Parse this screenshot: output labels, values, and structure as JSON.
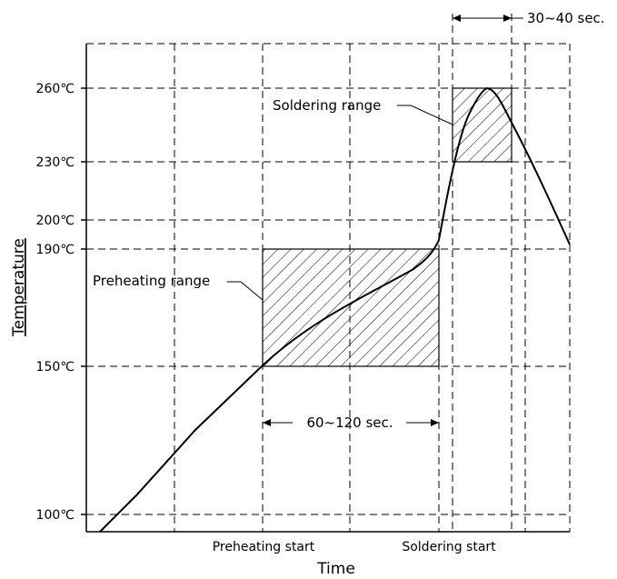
{
  "chart_data": {
    "type": "line",
    "xlabel": "Time",
    "ylabel": "Temperature",
    "y_ticks": [
      {
        "value": 100,
        "label": "100℃"
      },
      {
        "value": 150,
        "label": "150℃"
      },
      {
        "value": 190,
        "label": "190℃"
      },
      {
        "value": 200,
        "label": "200℃"
      },
      {
        "value": 230,
        "label": "230℃"
      },
      {
        "value": 260,
        "label": "260℃"
      }
    ],
    "x_markers": [
      {
        "label": "Preheating start"
      },
      {
        "label": "Soldering start"
      }
    ],
    "regions": [
      {
        "name": "preheating",
        "label": "Preheating range",
        "y_range": [
          150,
          190
        ],
        "duration_label": "60~120 sec."
      },
      {
        "name": "soldering",
        "label": "Soldering range",
        "y_range": [
          230,
          260
        ],
        "duration_label": "30~40 sec."
      }
    ],
    "grid": true,
    "grid_style": "dashed",
    "profile_peak": 260
  },
  "colors": {
    "line": "#000000",
    "grid": "#000000",
    "hatch": "#000000"
  }
}
